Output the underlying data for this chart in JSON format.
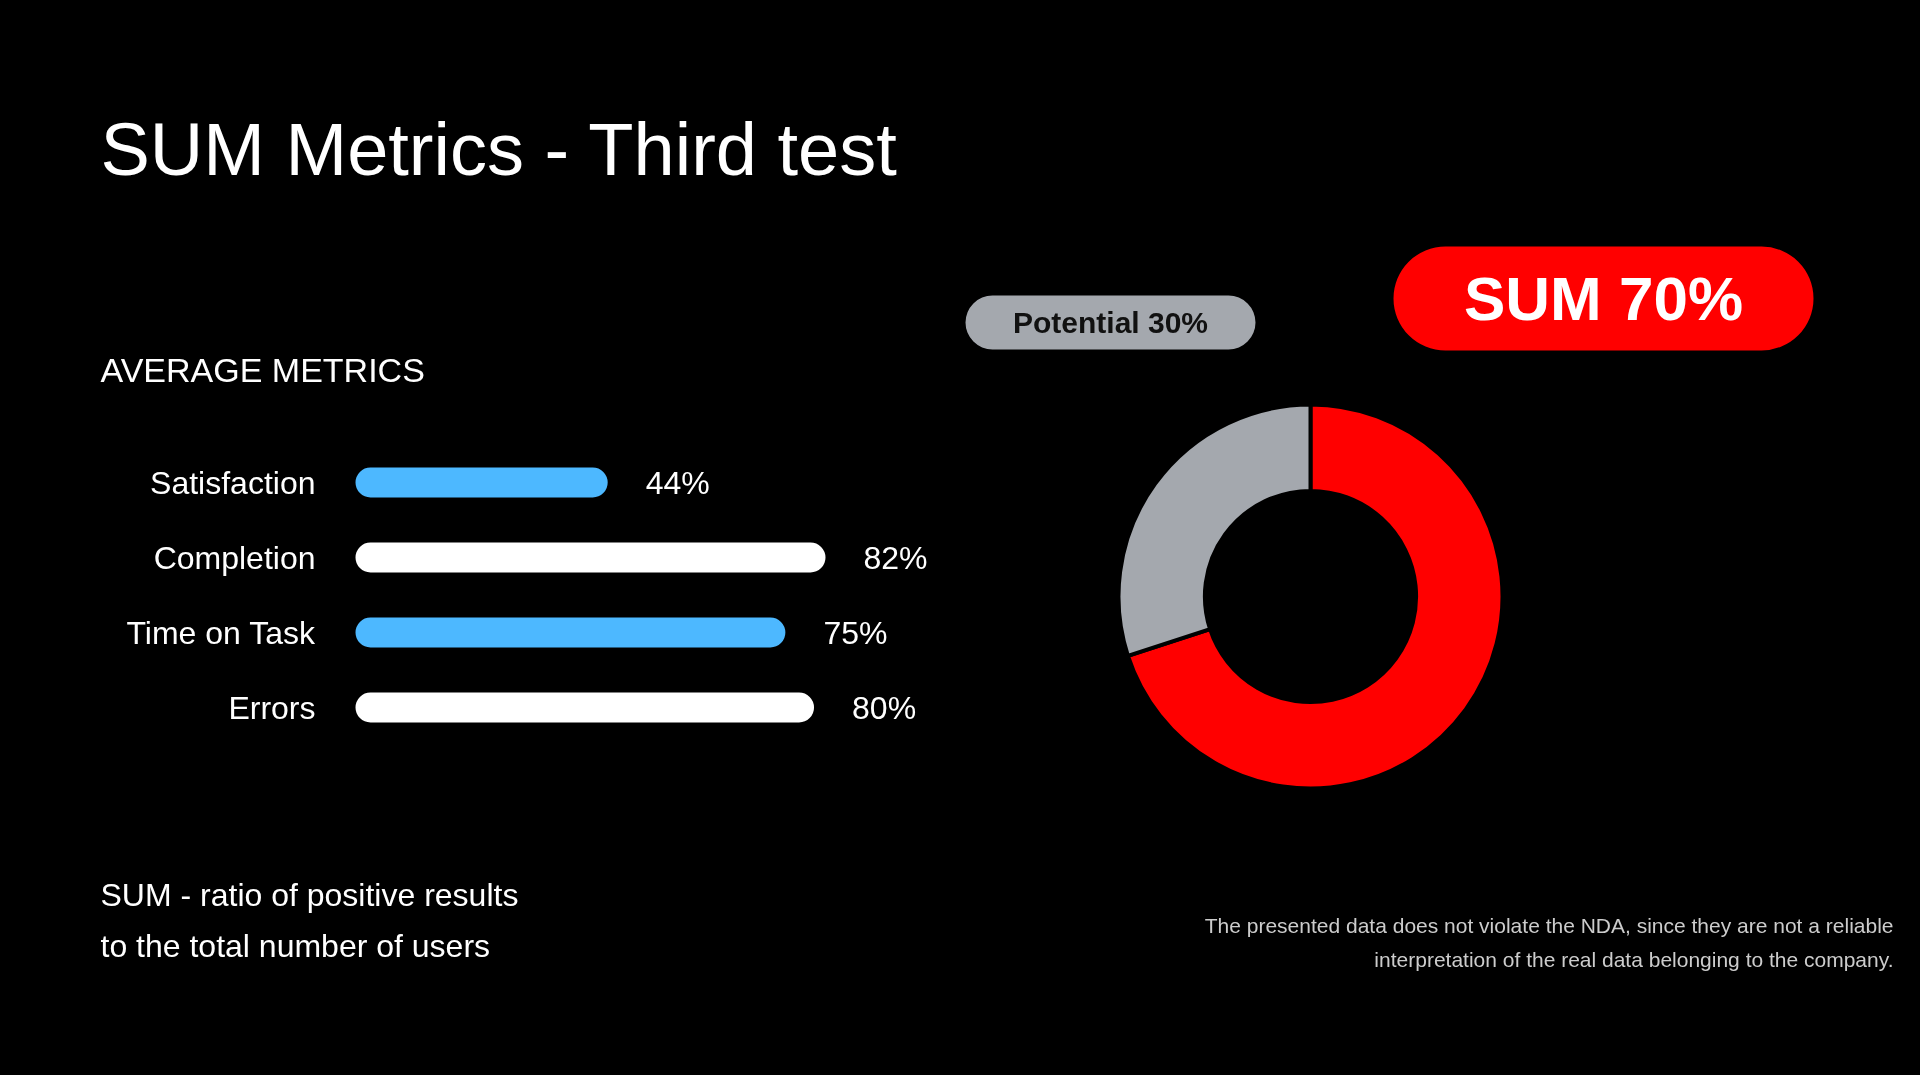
{
  "chart_data": [
    {
      "type": "bar",
      "orientation": "horizontal",
      "title": "SUM Metrics - Third test",
      "subtitle": "AVERAGE METRICS",
      "categories": [
        "Satisfaction",
        "Completion",
        "Time on Task",
        "Errors"
      ],
      "values": [
        44,
        82,
        75,
        80
      ],
      "colors": [
        "#4db8ff",
        "#ffffff",
        "#4db8ff",
        "#ffffff"
      ],
      "value_labels": [
        "44%",
        "82%",
        "75%",
        "80%"
      ],
      "annotations": [
        "SUM - ratio of positive results\nto the total number of users"
      ]
    },
    {
      "type": "donut",
      "categories": [
        "SUM",
        "Potential"
      ],
      "values": [
        70,
        30
      ],
      "colors": [
        "#ff0000",
        "#a4a8ae"
      ],
      "value_labels": [
        "70%",
        "30%"
      ],
      "annotations": [
        "The presented data does not violate the NDA, since they are not a reliable\ninterpretation of the real data belonging to the company."
      ]
    }
  ]
}
